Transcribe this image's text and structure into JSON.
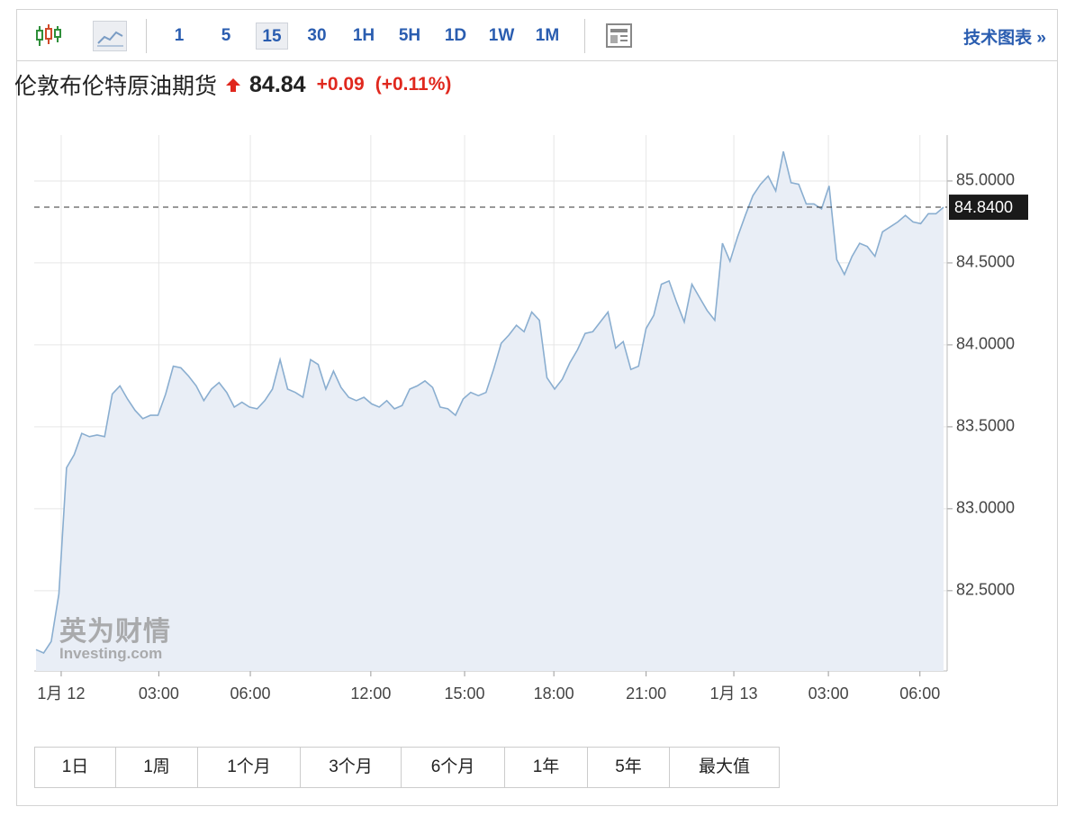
{
  "toolbar": {
    "intervals": [
      "1",
      "5",
      "15",
      "30",
      "1H",
      "5H",
      "1D",
      "1W",
      "1M"
    ],
    "active_interval": 2,
    "link": "技术图表 »"
  },
  "header": {
    "title": "伦敦布伦特原油期货",
    "price": "84.84",
    "change": "+0.09",
    "change_percent": "(+0.11%)"
  },
  "watermark": {
    "brand": "英为财情",
    "site": "Investing.com"
  },
  "chart_data": {
    "type": "line",
    "color": "#8aaed0",
    "fill": "#e9eef6",
    "values": [
      82.14,
      82.12,
      82.19,
      82.48,
      83.25,
      83.33,
      83.46,
      83.44,
      83.45,
      83.44,
      83.7,
      83.75,
      83.67,
      83.6,
      83.55,
      83.57,
      83.57,
      83.7,
      83.87,
      83.86,
      83.81,
      83.75,
      83.66,
      83.73,
      83.77,
      83.71,
      83.62,
      83.65,
      83.62,
      83.61,
      83.66,
      83.73,
      83.91,
      83.73,
      83.71,
      83.68,
      83.91,
      83.88,
      83.73,
      83.84,
      83.74,
      83.68,
      83.66,
      83.68,
      83.64,
      83.62,
      83.66,
      83.61,
      83.63,
      83.73,
      83.75,
      83.78,
      83.74,
      83.62,
      83.61,
      83.57,
      83.67,
      83.71,
      83.69,
      83.71,
      83.85,
      84.01,
      84.06,
      84.12,
      84.08,
      84.2,
      84.15,
      83.8,
      83.73,
      83.79,
      83.89,
      83.97,
      84.07,
      84.08,
      84.14,
      84.2,
      83.98,
      84.02,
      83.85,
      83.87,
      84.1,
      84.18,
      84.37,
      84.39,
      84.26,
      84.14,
      84.37,
      84.29,
      84.21,
      84.15,
      84.62,
      84.51,
      84.66,
      84.79,
      84.91,
      84.98,
      85.03,
      84.94,
      85.18,
      84.99,
      84.98,
      84.86,
      84.86,
      84.83,
      84.97,
      84.52,
      84.43,
      84.54,
      84.62,
      84.6,
      84.54,
      84.69,
      84.72,
      84.75,
      84.79,
      84.75,
      84.74,
      84.8,
      84.8,
      84.84
    ],
    "xlim": [
      0,
      119
    ],
    "xticks": [
      {
        "value": 3.3,
        "label": "1月 12"
      },
      {
        "value": 16.1,
        "label": "03:00"
      },
      {
        "value": 28.1,
        "label": "06:00"
      },
      {
        "value": 43.9,
        "label": "12:00"
      },
      {
        "value": 56.2,
        "label": "15:00"
      },
      {
        "value": 67.9,
        "label": "18:00"
      },
      {
        "value": 80,
        "label": "21:00"
      },
      {
        "value": 91.5,
        "label": "1月 13"
      },
      {
        "value": 103.9,
        "label": "03:00"
      },
      {
        "value": 115.9,
        "label": "06:00"
      }
    ],
    "ylim": [
      82.01,
      85.28
    ],
    "yticks": [
      {
        "value": 82.5,
        "label": "82.5000"
      },
      {
        "value": 83,
        "label": "83.0000"
      },
      {
        "value": 83.5,
        "label": "83.5000"
      },
      {
        "value": 84,
        "label": "84.0000"
      },
      {
        "value": 84.5,
        "label": "84.5000"
      },
      {
        "value": 85,
        "label": "85.0000"
      }
    ],
    "last_value": {
      "value": 84.84,
      "label": "84.8400"
    },
    "grid": true
  },
  "ranges": [
    "1日",
    "1周",
    "1个月",
    "3个月",
    "6个月",
    "1年",
    "5年",
    "最大值"
  ]
}
